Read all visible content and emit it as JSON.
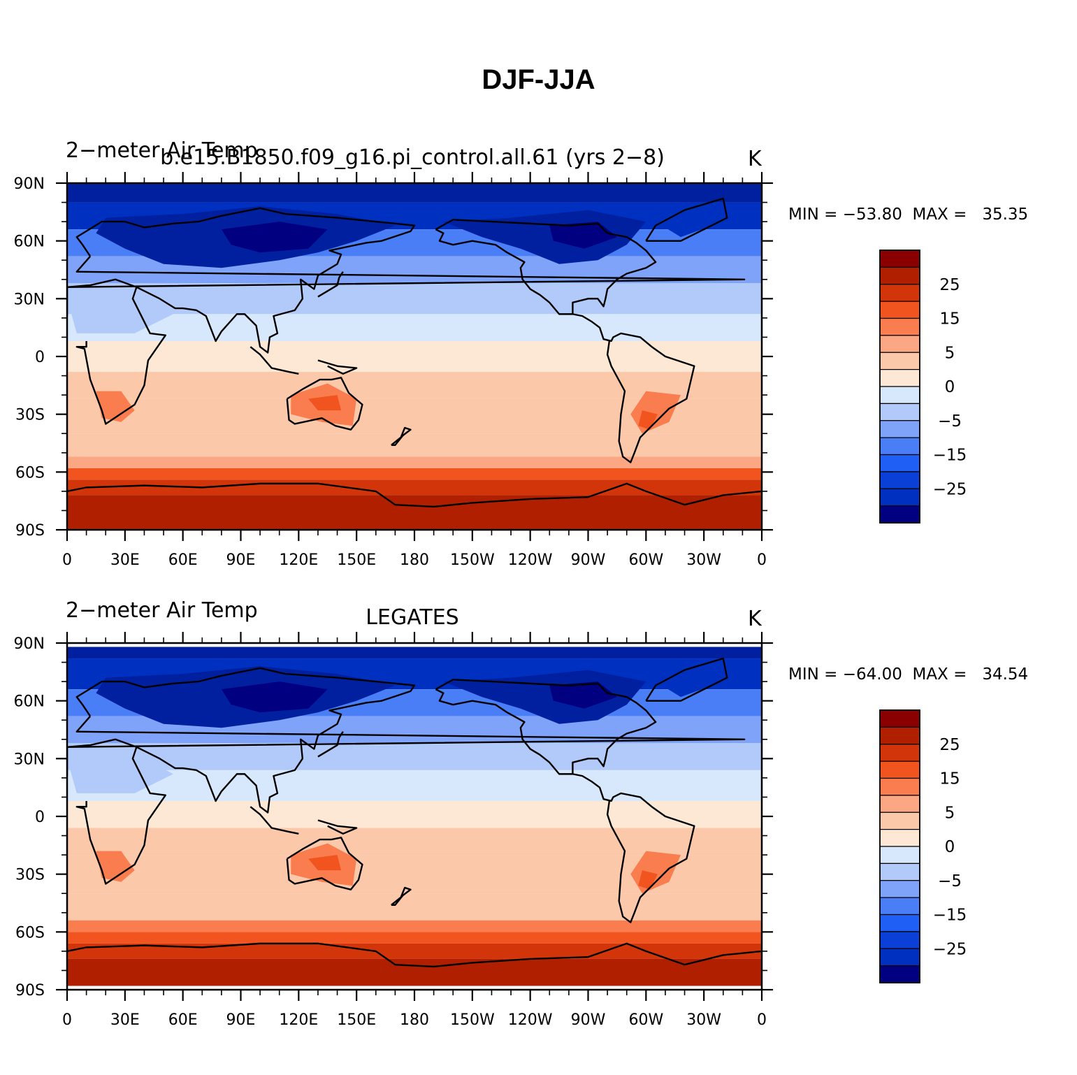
{
  "title": "DJF-JJA",
  "colors": {
    "scale": [
      "#000080",
      "#0020a0",
      "#0030c0",
      "#0a3fd8",
      "#1f5ff5",
      "#4a7ef7",
      "#7ea3f8",
      "#b1cafa",
      "#d7e8fd",
      "#fde7d5",
      "#fcc8aa",
      "#fba783",
      "#f97d4e",
      "#f2541f",
      "#d3350b",
      "#b02000",
      "#8a0000"
    ],
    "coast": "#000000"
  },
  "x_ticks": [
    "0",
    "30E",
    "60E",
    "90E",
    "120E",
    "150E",
    "180",
    "150W",
    "120W",
    "90W",
    "60W",
    "30W",
    "0"
  ],
  "y_ticks": [
    "90N",
    "60N",
    "30N",
    "0",
    "30S",
    "60S",
    "90S"
  ],
  "colorbar_labels": [
    "25",
    "15",
    "5",
    "0",
    "−5",
    "−15",
    "−25"
  ],
  "panels": [
    {
      "left_string": "2−meter Air Temp",
      "center_string": "b.e15.B1850.f09_g16.pi_control.all.61 (yrs 2−8)",
      "units": "K",
      "min_label": "MIN = −53.80",
      "max_label": "MAX =   35.35"
    },
    {
      "left_string": "2−meter Air Temp",
      "center_string": "LEGATES",
      "units": "K",
      "min_label": "MIN = −64.00",
      "max_label": "MAX =   34.54"
    }
  ]
}
